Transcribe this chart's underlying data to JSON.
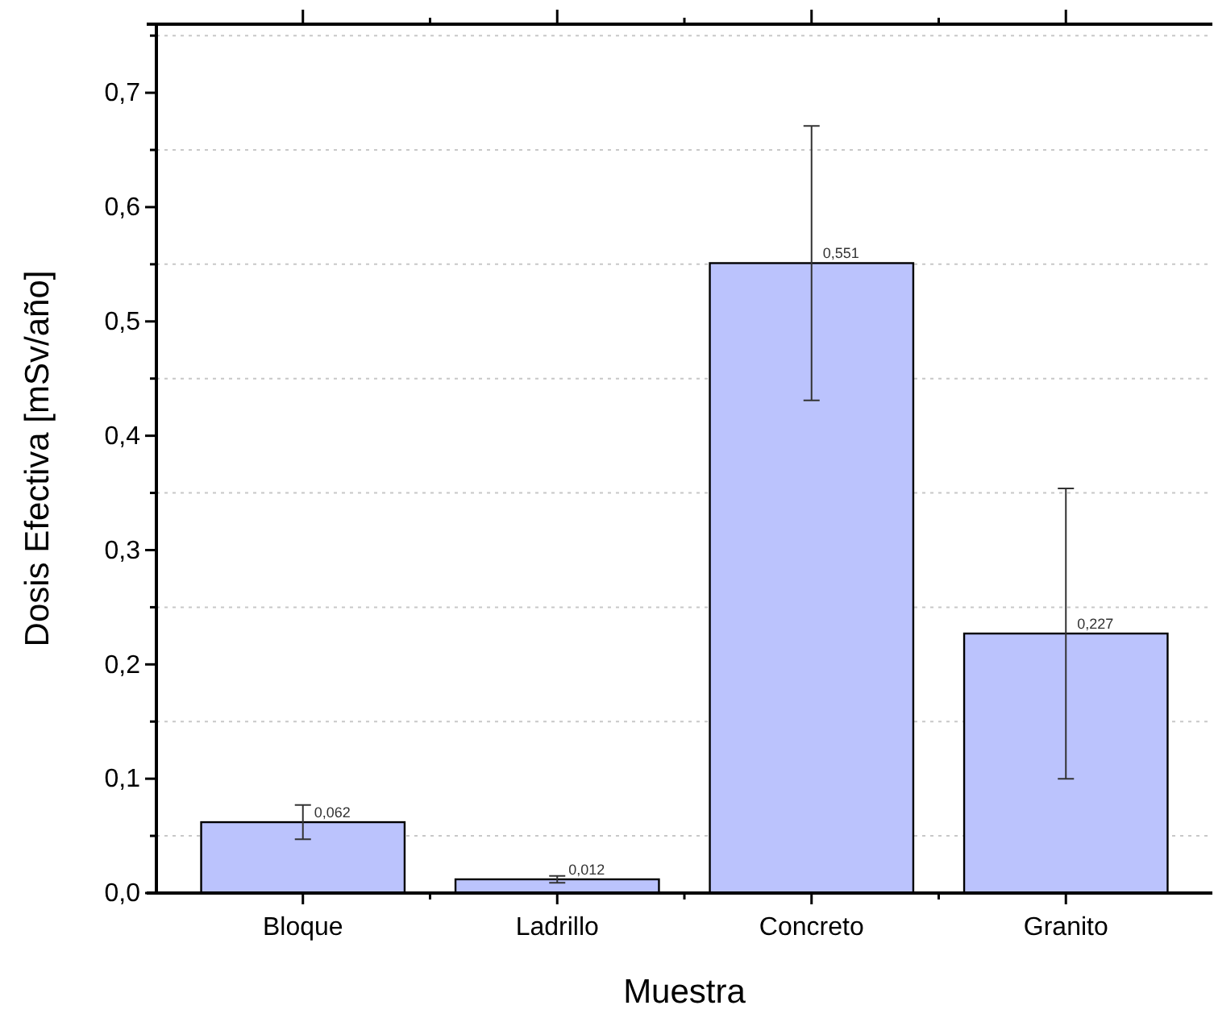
{
  "chart_data": {
    "type": "bar",
    "xlabel": "Muestra",
    "ylabel": "Dosis Efectiva [mSv/año]",
    "categories": [
      "Bloque",
      "Ladrillo",
      "Concreto",
      "Granito"
    ],
    "values": [
      0.062,
      0.012,
      0.551,
      0.227
    ],
    "value_labels": [
      "0,062",
      "0,012",
      "0,551",
      "0,227"
    ],
    "errors": [
      0.015,
      0.003,
      0.12,
      0.127
    ],
    "color": "#bbc3fd",
    "ylim": [
      0,
      0.76
    ],
    "yticks": [
      {
        "value": 0,
        "label": "0,0"
      },
      {
        "value": 0.05,
        "label": null
      },
      {
        "value": 0.1,
        "label": "0,1"
      },
      {
        "value": 0.15,
        "label": null
      },
      {
        "value": 0.2,
        "label": "0,2"
      },
      {
        "value": 0.25,
        "label": null
      },
      {
        "value": 0.3,
        "label": "0,3"
      },
      {
        "value": 0.35,
        "label": null
      },
      {
        "value": 0.4,
        "label": "0,4"
      },
      {
        "value": 0.45,
        "label": null
      },
      {
        "value": 0.5,
        "label": "0,5"
      },
      {
        "value": 0.55,
        "label": null
      },
      {
        "value": 0.6,
        "label": "0,6"
      },
      {
        "value": 0.65,
        "label": null
      },
      {
        "value": 0.7,
        "label": "0,7"
      },
      {
        "value": 0.75,
        "label": null
      }
    ],
    "grid": "y"
  }
}
